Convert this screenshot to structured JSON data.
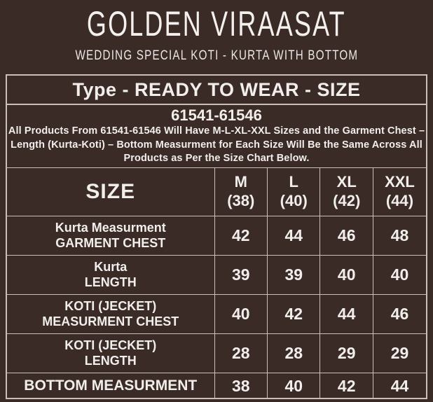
{
  "colors": {
    "background": "#3A2B27",
    "grid_border": "#C9C0BC",
    "text": "#F1EEEC"
  },
  "header": {
    "brand": "GOLDEN VIRAASAT",
    "subtitle": "WEDDING SPECIAL KOTI - KURTA WITH BOTTOM"
  },
  "banner": {
    "type_label": "Type - READY TO WEAR - SIZE"
  },
  "info": {
    "product_range": "61541-61546",
    "note_lines": [
      "All Products From 61541-61546 Will Have M-L-XL-XXL Sizes and the Garment Chest –",
      "Length (Kurta-Koti) – Bottom Measurment for Each Size Will Be the Same Across All",
      "Products as Per the Size Chart Below."
    ]
  },
  "chart_data": {
    "type": "table",
    "corner_label": "SIZE",
    "columns": [
      {
        "size": "M",
        "chest": "(38)"
      },
      {
        "size": "L",
        "chest": "(40)"
      },
      {
        "size": "XL",
        "chest": "(42)"
      },
      {
        "size": "XXL",
        "chest": "(44)"
      }
    ],
    "rows": [
      {
        "label_line1": "Kurta Measurment",
        "label_line2": "GARMENT CHEST",
        "values": [
          "42",
          "44",
          "46",
          "48"
        ]
      },
      {
        "label_line1": "Kurta",
        "label_line2": "LENGTH",
        "values": [
          "39",
          "39",
          "40",
          "40"
        ]
      },
      {
        "label_line1": "KOTI (JECKET)",
        "label_line2": "MEASURMENT CHEST",
        "values": [
          "40",
          "42",
          "44",
          "46"
        ]
      },
      {
        "label_line1": "KOTI (JECKET)",
        "label_line2": "LENGTH",
        "values": [
          "28",
          "28",
          "29",
          "29"
        ]
      },
      {
        "label_line1": "BOTTOM MEASURMENT",
        "label_line2": "",
        "values": [
          "38",
          "40",
          "42",
          "44"
        ]
      }
    ]
  }
}
